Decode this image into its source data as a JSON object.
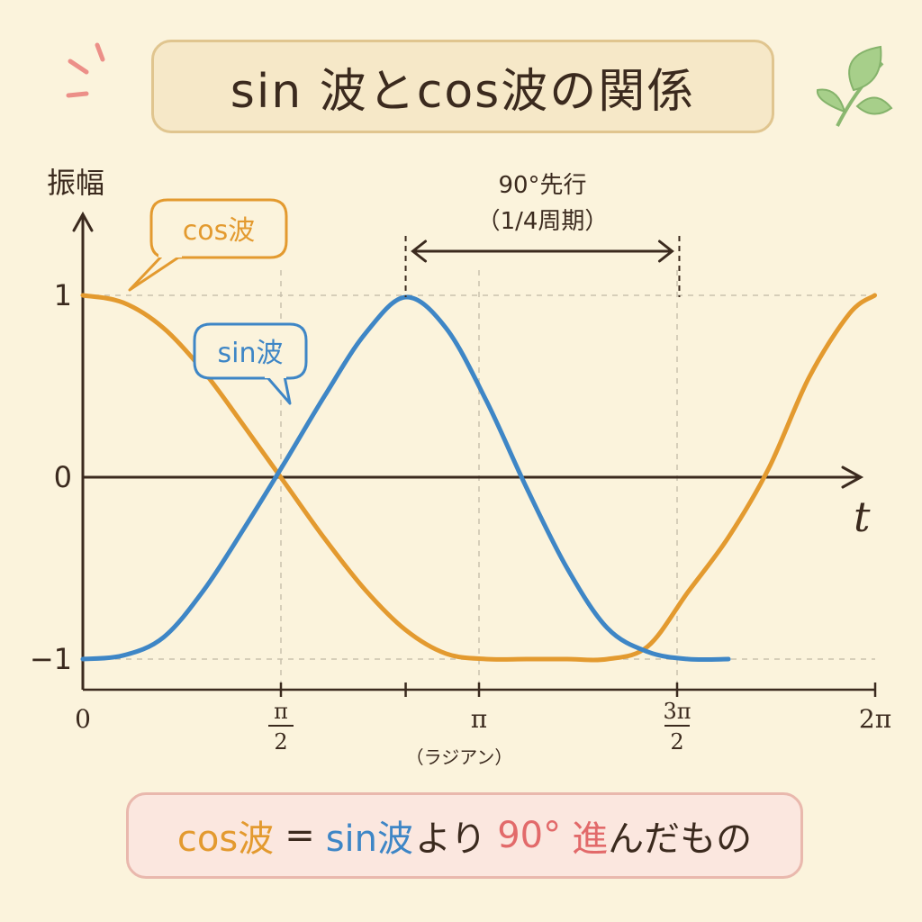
{
  "title": "sin 波とcos波の関係",
  "colors": {
    "cos": "#e39a2f",
    "sin": "#3e86c6",
    "axis": "#3b2a1e",
    "accent_red": "#e26a6a",
    "grid": "#c9c1ad"
  },
  "chart_data": {
    "type": "line",
    "ylabel": "振幅",
    "xlabel": "t",
    "x_unit_label": "（ラジアン）",
    "yticks": [
      {
        "value": 1,
        "label": "1"
      },
      {
        "value": 0,
        "label": "0"
      },
      {
        "value": -1,
        "label": "−1"
      }
    ],
    "xticks": [
      {
        "value": 0,
        "label": "0"
      },
      {
        "value": 1.5708,
        "label": "π/2",
        "num": "π",
        "den": "2"
      },
      {
        "value": 3.1416,
        "label": "π"
      },
      {
        "value": 4.7124,
        "label": "3π/2",
        "num": "3π",
        "den": "2"
      },
      {
        "value": 6.2832,
        "label": "2π"
      }
    ],
    "xlim": [
      0,
      6.2832
    ],
    "ylim": [
      -1,
      1
    ],
    "series": [
      {
        "name": "cos波",
        "color": "#e39a2f",
        "x": [
          0,
          0.32,
          0.64,
          0.96,
          1.28,
          1.6,
          1.92,
          2.24,
          2.56,
          2.88,
          3.2,
          3.52,
          3.84,
          4.16,
          4.48,
          4.8,
          5.12,
          5.44,
          5.76,
          6.08,
          6.28
        ],
        "y": [
          1,
          0.96,
          0.82,
          0.58,
          0.28,
          -0.03,
          -0.34,
          -0.62,
          -0.84,
          -0.97,
          -1,
          -1,
          -1,
          -1,
          -0.93,
          -0.63,
          -0.33,
          0.05,
          0.55,
          0.9,
          1
        ]
      },
      {
        "name": "sin波",
        "color": "#3e86c6",
        "x": [
          0,
          0.32,
          0.64,
          0.96,
          1.28,
          1.6,
          1.92,
          2.24,
          2.56,
          2.88,
          3.2,
          3.52,
          3.84,
          4.16,
          4.48,
          4.8,
          5.12
        ],
        "y": [
          -1,
          -0.98,
          -0.88,
          -0.62,
          -0.28,
          0.08,
          0.45,
          0.79,
          0.99,
          0.82,
          0.42,
          -0.06,
          -0.5,
          -0.83,
          -0.96,
          -1,
          -1
        ]
      }
    ],
    "annotation": {
      "line1": "90°先行",
      "line2": "（1/4周期）",
      "from_x": 2.56,
      "to_x": 4.73
    },
    "grid": true
  },
  "labels": {
    "cos": "cos波",
    "sin": "sin波"
  },
  "footer": {
    "cos": "cos波",
    "eq": "=",
    "sin": "sin波",
    "yori": "より",
    "deg": "90°",
    "susun": "進",
    "rest": "んだもの"
  }
}
